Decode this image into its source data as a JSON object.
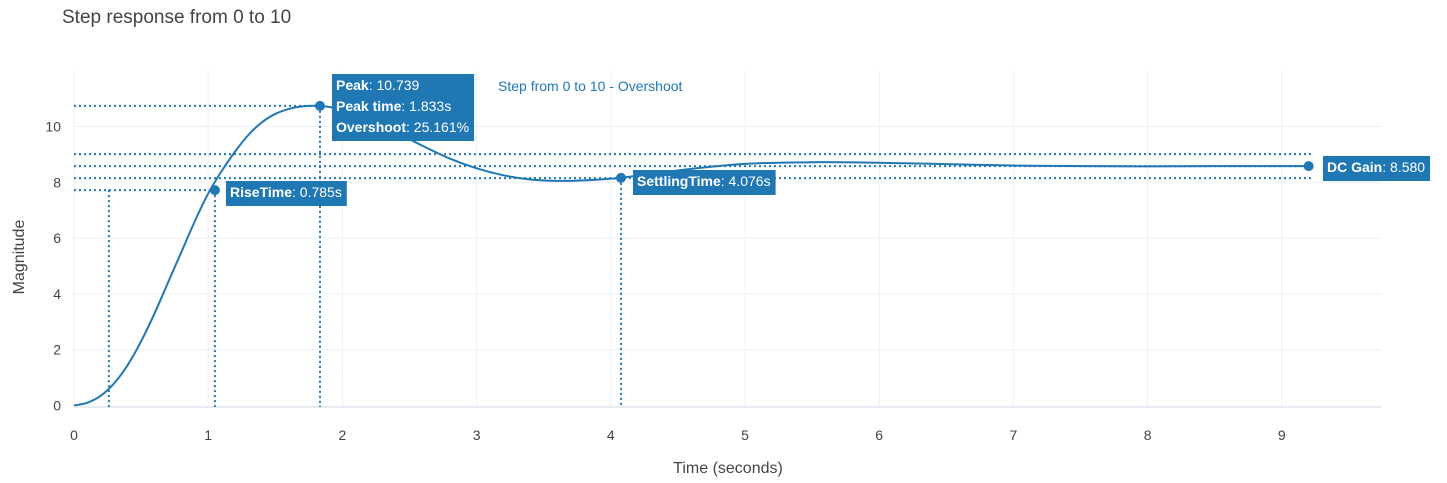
{
  "chart_data": {
    "type": "line",
    "title": "Step response from 0 to 10",
    "xlabel": "Time (seconds)",
    "ylabel": "Magnitude",
    "xlim": [
      0,
      9.75
    ],
    "ylim": [
      -0.1,
      11.4
    ],
    "x_ticks": [
      0,
      1,
      2,
      3,
      4,
      5,
      6,
      7,
      8,
      9
    ],
    "y_ticks": [
      0,
      2,
      4,
      6,
      8,
      10
    ],
    "grid": true,
    "series": [
      {
        "name": "Step from 0 to 10 - Overshoot",
        "color": "#1f77b4",
        "x": [
          0,
          0.1,
          0.2,
          0.3,
          0.4,
          0.5,
          0.6,
          0.7,
          0.8,
          0.9,
          1.0,
          1.1,
          1.2,
          1.3,
          1.4,
          1.5,
          1.6,
          1.7,
          1.833,
          2.0,
          2.2,
          2.4,
          2.6,
          2.8,
          3.0,
          3.2,
          3.4,
          3.6,
          3.8,
          4.0,
          4.076,
          4.3,
          4.6,
          5.0,
          5.5,
          6.0,
          6.5,
          7.0,
          7.5,
          8.0,
          8.5,
          9.0,
          9.2
        ],
        "y": [
          0,
          0.1,
          0.35,
          0.8,
          1.45,
          2.3,
          3.3,
          4.4,
          5.5,
          6.6,
          7.6,
          8.4,
          9.1,
          9.7,
          10.15,
          10.45,
          10.63,
          10.72,
          10.739,
          10.6,
          10.25,
          9.8,
          9.3,
          8.85,
          8.5,
          8.25,
          8.1,
          8.05,
          8.07,
          8.13,
          8.16,
          8.3,
          8.48,
          8.66,
          8.72,
          8.7,
          8.65,
          8.6,
          8.58,
          8.57,
          8.58,
          8.58,
          8.58
        ]
      }
    ],
    "annotations": {
      "peak": {
        "x": 1.833,
        "y": 10.739,
        "label1": "Peak",
        "value1": ": 10.739",
        "label2": "Peak time",
        "value2": ": 1.833s",
        "label3": "Overshoot",
        "value3": ": 25.161%"
      },
      "rise": {
        "x": 1.05,
        "y": 7.72,
        "x_start": 0.26,
        "label": "RiseTime",
        "value": ": 0.785s"
      },
      "settling": {
        "x": 4.076,
        "y": 8.16,
        "label": "SettlingTime",
        "value": ": 4.076s"
      },
      "dc": {
        "x": 9.2,
        "y": 8.58,
        "label": "DC Gain",
        "value": ": 8.580"
      },
      "settling_band_upper": 9.01,
      "settling_band_lower": 8.15
    }
  }
}
